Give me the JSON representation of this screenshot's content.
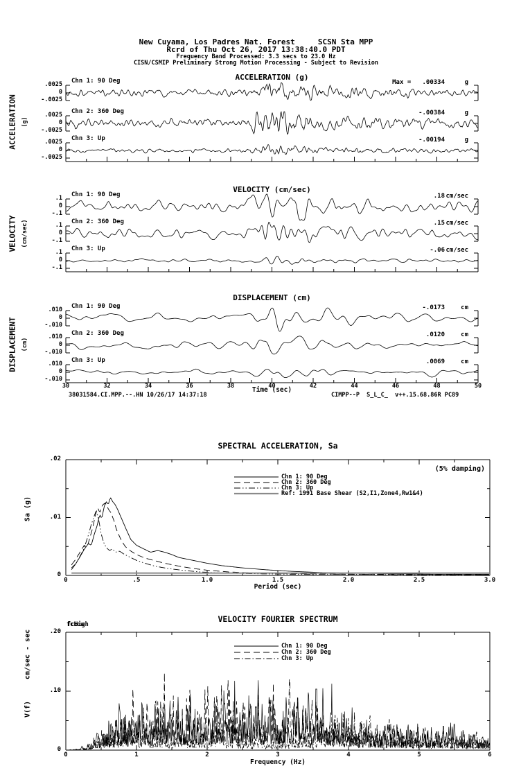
{
  "page": {
    "background": "#ffffff",
    "foreground": "#000000",
    "ref_line_gray": "#8a8a8a"
  },
  "header": {
    "line1": "New Cuyama, Los Padres Nat. Forest     SCSN Sta MPP",
    "line2": "Rcrd of Thu Oct 26, 2017 13:38:40.0 PDT",
    "line3": "Frequency Band Processed: 3.3 secs to 23.0 Hz",
    "line4": "CISN/CSMIP Preliminary Strong Motion Processing - Subject to Revision"
  },
  "footer": {
    "left": "38031584.CI.MPP.--.HN 10/26/17 14:37:18",
    "right": "CIMPP--P  S_L_C_  v++.15.68.86R PC89"
  },
  "synth": {
    "time_envelope": [
      [
        30,
        0.3
      ],
      [
        34,
        0.28
      ],
      [
        38.4,
        0.28
      ],
      [
        38.9,
        0.45
      ],
      [
        39.3,
        0.75
      ],
      [
        39.8,
        1.0
      ],
      [
        40.3,
        0.95
      ],
      [
        40.9,
        0.85
      ],
      [
        41.6,
        0.7
      ],
      [
        42.4,
        0.6
      ],
      [
        43.4,
        0.5
      ],
      [
        44.6,
        0.44
      ],
      [
        46,
        0.38
      ],
      [
        47.5,
        0.34
      ],
      [
        49,
        0.31
      ],
      [
        50,
        0.3
      ]
    ]
  },
  "chart_data": [
    {
      "type": "line",
      "id": "acceleration-time-series",
      "title": "ACCELERATION (g)",
      "ylabel_main": "ACCELERATION",
      "ylabel_sub": "(g)",
      "x_range_sec": [
        30,
        50
      ],
      "y_scale": 0.0025,
      "ytick_labels": [
        ".0025",
        "0",
        "-.0025"
      ],
      "traces": [
        {
          "label": "Chn 1: 90 Deg",
          "peak_text": "Max =   .00334",
          "unit": "g",
          "peak_value": 0.00334
        },
        {
          "label": "Chn 2: 360 Deg",
          "peak_text": "-.00384",
          "unit": "g",
          "peak_value": -0.00384
        },
        {
          "label": "Chn 3: Up",
          "peak_text": "-.00194",
          "unit": "g",
          "peak_value": -0.00194
        }
      ],
      "synth": {
        "seeds": [
          3,
          7,
          13
        ],
        "radius": 1,
        "passes": 2
      }
    },
    {
      "type": "line",
      "id": "velocity-time-series",
      "title": "VELOCITY (cm/sec)",
      "ylabel_main": "VELOCITY",
      "ylabel_sub": "(cm/sec)",
      "x_range_sec": [
        30,
        50
      ],
      "y_scale": 0.1,
      "ytick_labels": [
        ".1",
        "0",
        "-.1"
      ],
      "traces": [
        {
          "label": "Chn 1: 90 Deg",
          "peak_text": ".18",
          "unit": "cm/sec",
          "peak_value": 0.18
        },
        {
          "label": "Chn 2: 360 Deg",
          "peak_text": ".15",
          "unit": "cm/sec",
          "peak_value": 0.15
        },
        {
          "label": "Chn 3: Up",
          "peak_text": "-.06",
          "unit": "cm/sec",
          "peak_value": -0.06
        }
      ],
      "synth": {
        "seeds": [
          5,
          9,
          17
        ],
        "radius": 2,
        "passes": 3
      }
    },
    {
      "type": "line",
      "id": "displacement-time-series",
      "title": "DISPLACEMENT (cm)",
      "ylabel_main": "DISPLACEMENT",
      "ylabel_sub": "(cm)",
      "x_range_sec": [
        30,
        50
      ],
      "y_scale": 0.01,
      "ytick_labels": [
        ".010",
        "0",
        "-.010"
      ],
      "xlabel": "Time (sec)",
      "xtick_labels": [
        "30",
        "32",
        "34",
        "36",
        "38",
        "40",
        "42",
        "44",
        "46",
        "48",
        "50"
      ],
      "traces": [
        {
          "label": "Chn 1: 90 Deg",
          "peak_text": "-.0173",
          "unit": "cm",
          "peak_value": -0.0173
        },
        {
          "label": "Chn 2: 360 Deg",
          "peak_text": ".0120",
          "unit": "cm",
          "peak_value": 0.012
        },
        {
          "label": "Chn 3: Up",
          "peak_text": ".0069",
          "unit": "cm",
          "peak_value": 0.0069
        }
      ],
      "synth": {
        "seeds": [
          21,
          25,
          29
        ],
        "radius": 2,
        "passes": 10
      }
    },
    {
      "type": "line",
      "id": "spectral-acceleration",
      "title": "SPECTRAL ACCELERATION, Sa",
      "annotation": "(5% damping)",
      "xlabel": "Period (sec)",
      "ylabel": "Sa (g)",
      "xlim": [
        0,
        3.0
      ],
      "ylim": [
        0,
        0.02
      ],
      "xtick_labels": [
        "0",
        ".5",
        "1.0",
        "1.5",
        "2.0",
        "2.5",
        "3.0"
      ],
      "ytick_labels": [
        ".02",
        ".01",
        "0"
      ],
      "legend": [
        {
          "label": "Chn 1: 90 Deg",
          "style": "solid"
        },
        {
          "label": "Chn 2: 360 Deg",
          "style": "longdash"
        },
        {
          "label": "Chn 3: Up",
          "style": "dashdotdot"
        },
        {
          "label": "Ref: 1991 Base Shear (S2,I1,Zone4,Rw1&4)",
          "style": "refsolid"
        }
      ],
      "series": [
        {
          "name": "Chn 1: 90 Deg",
          "style": "solid",
          "points": [
            [
              0.04,
              0.0013
            ],
            [
              0.07,
              0.002
            ],
            [
              0.1,
              0.0032
            ],
            [
              0.13,
              0.0045
            ],
            [
              0.16,
              0.0055
            ],
            [
              0.18,
              0.0052
            ],
            [
              0.2,
              0.007
            ],
            [
              0.22,
              0.0085
            ],
            [
              0.24,
              0.0105
            ],
            [
              0.255,
              0.0098
            ],
            [
              0.27,
              0.0118
            ],
            [
              0.285,
              0.0128
            ],
            [
              0.3,
              0.0122
            ],
            [
              0.315,
              0.0135
            ],
            [
              0.33,
              0.0128
            ],
            [
              0.35,
              0.0122
            ],
            [
              0.37,
              0.0112
            ],
            [
              0.4,
              0.0095
            ],
            [
              0.43,
              0.0078
            ],
            [
              0.46,
              0.0062
            ],
            [
              0.5,
              0.0052
            ],
            [
              0.55,
              0.0046
            ],
            [
              0.6,
              0.004
            ],
            [
              0.65,
              0.0043
            ],
            [
              0.7,
              0.004
            ],
            [
              0.75,
              0.0036
            ],
            [
              0.8,
              0.0031
            ],
            [
              0.9,
              0.0026
            ],
            [
              1.0,
              0.0021
            ],
            [
              1.1,
              0.0017
            ],
            [
              1.25,
              0.0013
            ],
            [
              1.4,
              0.001
            ],
            [
              1.6,
              0.0007
            ],
            [
              1.8,
              0.0005
            ],
            [
              2.0,
              0.0004
            ],
            [
              2.3,
              0.0003
            ],
            [
              2.6,
              0.0002
            ],
            [
              3.0,
              0.0002
            ]
          ]
        },
        {
          "name": "Chn 2: 360 Deg",
          "style": "longdash",
          "points": [
            [
              0.04,
              0.0018
            ],
            [
              0.07,
              0.0028
            ],
            [
              0.1,
              0.004
            ],
            [
              0.13,
              0.0052
            ],
            [
              0.15,
              0.0048
            ],
            [
              0.17,
              0.0065
            ],
            [
              0.19,
              0.0082
            ],
            [
              0.21,
              0.0105
            ],
            [
              0.225,
              0.0118
            ],
            [
              0.24,
              0.0108
            ],
            [
              0.26,
              0.0122
            ],
            [
              0.28,
              0.0125
            ],
            [
              0.3,
              0.0115
            ],
            [
              0.32,
              0.0108
            ],
            [
              0.34,
              0.0095
            ],
            [
              0.36,
              0.0078
            ],
            [
              0.39,
              0.0062
            ],
            [
              0.42,
              0.005
            ],
            [
              0.46,
              0.0042
            ],
            [
              0.5,
              0.0036
            ],
            [
              0.56,
              0.003
            ],
            [
              0.62,
              0.0026
            ],
            [
              0.7,
              0.0021
            ],
            [
              0.8,
              0.0016
            ],
            [
              0.9,
              0.0012
            ],
            [
              1.0,
              0.0009
            ],
            [
              1.15,
              0.0006
            ],
            [
              1.35,
              0.0004
            ],
            [
              1.6,
              0.0003
            ],
            [
              2.0,
              0.0002
            ],
            [
              2.5,
              0.0002
            ],
            [
              3.0,
              0.0001
            ]
          ]
        },
        {
          "name": "Chn 3: Up",
          "style": "dashdotdot",
          "points": [
            [
              0.04,
              0.001
            ],
            [
              0.07,
              0.002
            ],
            [
              0.1,
              0.0033
            ],
            [
              0.12,
              0.0042
            ],
            [
              0.14,
              0.0055
            ],
            [
              0.16,
              0.007
            ],
            [
              0.18,
              0.0088
            ],
            [
              0.2,
              0.0102
            ],
            [
              0.215,
              0.0112
            ],
            [
              0.23,
              0.01
            ],
            [
              0.25,
              0.0072
            ],
            [
              0.27,
              0.0055
            ],
            [
              0.29,
              0.0047
            ],
            [
              0.31,
              0.0043
            ],
            [
              0.33,
              0.0046
            ],
            [
              0.35,
              0.004
            ],
            [
              0.38,
              0.0042
            ],
            [
              0.41,
              0.0037
            ],
            [
              0.45,
              0.0032
            ],
            [
              0.5,
              0.0026
            ],
            [
              0.56,
              0.0021
            ],
            [
              0.63,
              0.0016
            ],
            [
              0.72,
              0.0012
            ],
            [
              0.82,
              0.0009
            ],
            [
              0.95,
              0.0006
            ],
            [
              1.1,
              0.0004
            ],
            [
              1.3,
              0.0003
            ],
            [
              1.6,
              0.0002
            ],
            [
              2.0,
              0.0002
            ],
            [
              2.5,
              0.0001
            ],
            [
              3.0,
              0.0001
            ]
          ]
        },
        {
          "name": "Ref: 1991 Base Shear (S2,I1,Zone4,Rw1&4)",
          "style": "refsolid",
          "points": [
            [
              0.04,
              0.0004
            ],
            [
              3.0,
              0.0004
            ]
          ]
        }
      ]
    },
    {
      "type": "line",
      "id": "velocity-fourier-spectrum",
      "title": "VELOCITY FOURIER SPECTRUM",
      "xlabel": "Frequency (Hz)",
      "ylabel": "V(f)",
      "ylabel_units": "cm/sec - sec",
      "corner_labels": [
        "fcLow",
        "fcHigh"
      ],
      "xlim": [
        0,
        6
      ],
      "ylim": [
        0,
        0.2
      ],
      "xtick_labels": [
        "0",
        "1",
        "2",
        "3",
        "4",
        "5",
        "6"
      ],
      "ytick_labels": [
        ".20",
        ".10",
        "0"
      ],
      "legend": [
        {
          "label": "Chn 1: 90 Deg",
          "style": "solid"
        },
        {
          "label": "Chn 2: 360 Deg",
          "style": "longdash"
        },
        {
          "label": "Chn 3: Up",
          "style": "dashdot"
        }
      ],
      "series": [
        {
          "name": "Chn 1: 90 Deg",
          "style": "solid",
          "seed": 101,
          "envelope": [
            [
              0,
              0
            ],
            [
              0.15,
              0.0005
            ],
            [
              0.3,
              0.004
            ],
            [
              0.45,
              0.012
            ],
            [
              0.6,
              0.025
            ],
            [
              0.75,
              0.035
            ],
            [
              0.9,
              0.03
            ],
            [
              1.1,
              0.032
            ],
            [
              1.3,
              0.035
            ],
            [
              1.5,
              0.04
            ],
            [
              1.7,
              0.038
            ],
            [
              1.9,
              0.042
            ],
            [
              2.1,
              0.045
            ],
            [
              2.35,
              0.05
            ],
            [
              2.6,
              0.042
            ],
            [
              2.8,
              0.038
            ],
            [
              3.0,
              0.035
            ],
            [
              3.2,
              0.038
            ],
            [
              3.45,
              0.042
            ],
            [
              3.65,
              0.045
            ],
            [
              3.8,
              0.04
            ],
            [
              4.0,
              0.028
            ],
            [
              4.2,
              0.02
            ],
            [
              4.5,
              0.018
            ],
            [
              4.8,
              0.02
            ],
            [
              5.1,
              0.018
            ],
            [
              5.4,
              0.016
            ],
            [
              5.7,
              0.016
            ],
            [
              6.0,
              0.015
            ]
          ]
        },
        {
          "name": "Chn 2: 360 Deg",
          "style": "longdash",
          "seed": 202,
          "envelope": [
            [
              0,
              0
            ],
            [
              0.2,
              0.001
            ],
            [
              0.35,
              0.006
            ],
            [
              0.5,
              0.015
            ],
            [
              0.7,
              0.028
            ],
            [
              0.9,
              0.032
            ],
            [
              1.1,
              0.035
            ],
            [
              1.3,
              0.045
            ],
            [
              1.5,
              0.048
            ],
            [
              1.7,
              0.04
            ],
            [
              1.9,
              0.042
            ],
            [
              2.1,
              0.04
            ],
            [
              2.3,
              0.045
            ],
            [
              2.5,
              0.04
            ],
            [
              2.7,
              0.038
            ],
            [
              2.9,
              0.042
            ],
            [
              3.1,
              0.045
            ],
            [
              3.3,
              0.048
            ],
            [
              3.5,
              0.04
            ],
            [
              3.7,
              0.032
            ],
            [
              3.9,
              0.025
            ],
            [
              4.1,
              0.02
            ],
            [
              4.4,
              0.022
            ],
            [
              4.7,
              0.018
            ],
            [
              5.0,
              0.014
            ],
            [
              5.5,
              0.013
            ],
            [
              6.0,
              0.012
            ]
          ]
        },
        {
          "name": "Chn 3: Up",
          "style": "dashdot",
          "seed": 303,
          "envelope": [
            [
              0,
              0
            ],
            [
              0.2,
              0.001
            ],
            [
              0.4,
              0.008
            ],
            [
              0.6,
              0.018
            ],
            [
              0.8,
              0.022
            ],
            [
              1.0,
              0.02
            ],
            [
              1.2,
              0.018
            ],
            [
              1.5,
              0.015
            ],
            [
              1.8,
              0.014
            ],
            [
              2.1,
              0.016
            ],
            [
              2.4,
              0.014
            ],
            [
              2.7,
              0.012
            ],
            [
              3.0,
              0.01
            ],
            [
              3.3,
              0.012
            ],
            [
              3.6,
              0.022
            ],
            [
              3.9,
              0.028
            ],
            [
              4.2,
              0.022
            ],
            [
              4.5,
              0.018
            ],
            [
              4.9,
              0.014
            ],
            [
              5.3,
              0.012
            ],
            [
              5.7,
              0.011
            ],
            [
              6.0,
              0.01
            ]
          ]
        }
      ]
    }
  ]
}
